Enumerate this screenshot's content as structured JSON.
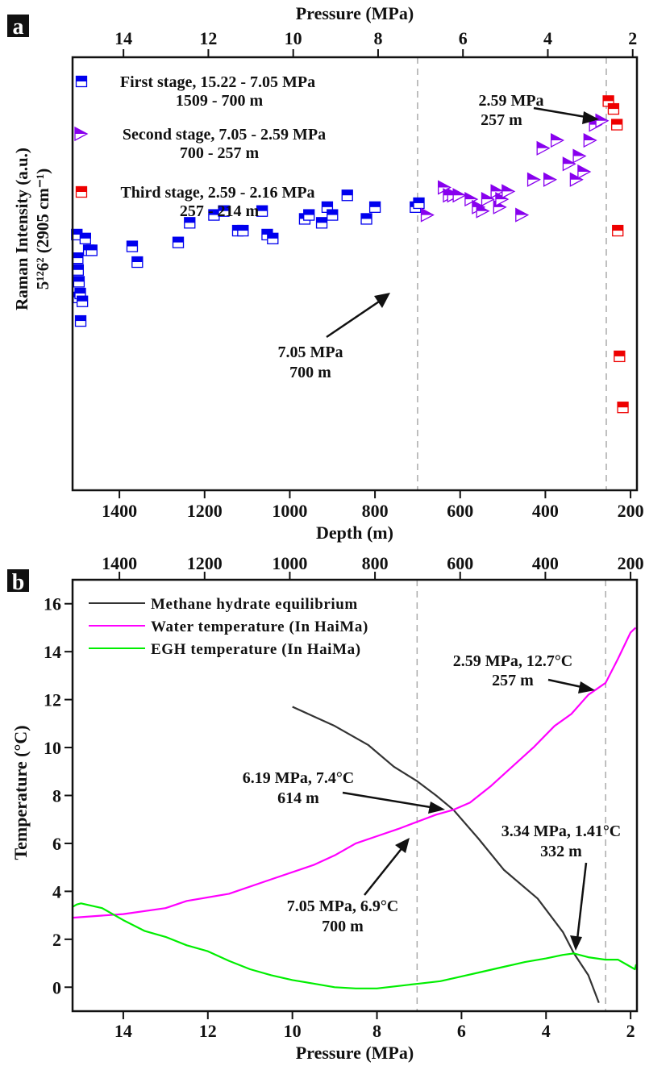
{
  "chart_data": [
    {
      "type": "scatter",
      "panel_label": "a",
      "top_axis": {
        "label": "Pressure (MPa)",
        "ticks": [
          14,
          12,
          10,
          8,
          6,
          4,
          2
        ],
        "range": [
          15.2,
          1.9
        ]
      },
      "xlabel": "Depth (m)",
      "xticks": [
        1400,
        1200,
        1000,
        800,
        600,
        400,
        200
      ],
      "xlim": [
        1510,
        185
      ],
      "ylabel_line1": "Raman Intensity (a.u.)",
      "ylabel_line2": "5¹²6² (2905 cm⁻¹)",
      "ylim": [
        0,
        100
      ],
      "grid": false,
      "legend_position": "top-left",
      "vlines_depth": [
        700,
        257
      ],
      "series": [
        {
          "name": "First stage, 15.22 - 7.05 MPa",
          "name2": "1509 - 700 m",
          "color": "#0000ee",
          "marker": "half-square",
          "points": [
            [
              1500,
              61
            ],
            [
              1498,
              55
            ],
            [
              1497,
              52
            ],
            [
              1495,
              49
            ],
            [
              1496,
              45
            ],
            [
              1492,
              46
            ],
            [
              1491,
              39
            ],
            [
              1487,
              44
            ],
            [
              1480,
              60
            ],
            [
              1472,
              57
            ],
            [
              1465,
              57
            ],
            [
              1370,
              58
            ],
            [
              1358,
              54
            ],
            [
              1262,
              59
            ],
            [
              1235,
              64
            ],
            [
              1178,
              66
            ],
            [
              1155,
              67
            ],
            [
              1122,
              62
            ],
            [
              1110,
              62
            ],
            [
              1065,
              67
            ],
            [
              1053,
              61
            ],
            [
              1040,
              60
            ],
            [
              965,
              65
            ],
            [
              955,
              66
            ],
            [
              925,
              64
            ],
            [
              912,
              68
            ],
            [
              900,
              66
            ],
            [
              865,
              71
            ],
            [
              820,
              65
            ],
            [
              800,
              68
            ],
            [
              705,
              68
            ],
            [
              697,
              69
            ]
          ]
        },
        {
          "name": "Second stage, 7.05 - 2.59 MPa",
          "name2": "700 - 257 m",
          "color": "#8800ee",
          "marker": "half-triangle",
          "points": [
            [
              680,
              66
            ],
            [
              640,
              73
            ],
            [
              628,
              71
            ],
            [
              618,
              71
            ],
            [
              605,
              71
            ],
            [
              577,
              70
            ],
            [
              560,
              68
            ],
            [
              550,
              67
            ],
            [
              538,
              70
            ],
            [
              516,
              72
            ],
            [
              510,
              68
            ],
            [
              505,
              70
            ],
            [
              490,
              72
            ],
            [
              458,
              66
            ],
            [
              430,
              75
            ],
            [
              408,
              83
            ],
            [
              392,
              75
            ],
            [
              375,
              85
            ],
            [
              347,
              79
            ],
            [
              330,
              75
            ],
            [
              323,
              81
            ],
            [
              312,
              77
            ],
            [
              298,
              85
            ],
            [
              285,
              89
            ],
            [
              270,
              90
            ]
          ]
        },
        {
          "name": "Third stage, 2.59 - 2.16 MPa",
          "name2": "257 - 214 m",
          "color": "#ee0000",
          "marker": "half-square",
          "points": [
            [
              252,
              95
            ],
            [
              240,
              93
            ],
            [
              232,
              89
            ],
            [
              230,
              62
            ],
            [
              226,
              30
            ],
            [
              218,
              17
            ]
          ]
        }
      ],
      "annotations": [
        {
          "line1": "2.59 MPa",
          "line2": "257 m",
          "target_depth": 257
        },
        {
          "line1": "7.05 MPa",
          "line2": "700 m",
          "target_depth": 700
        }
      ]
    },
    {
      "type": "line",
      "panel_label": "b",
      "top_axis": {
        "label": "",
        "ticks": [
          1400,
          1200,
          1000,
          800,
          600,
          400,
          200
        ],
        "range": [
          1510,
          185
        ]
      },
      "xlabel": "Pressure (MPa)",
      "xticks": [
        14,
        12,
        10,
        8,
        6,
        4,
        2
      ],
      "xlim": [
        15.2,
        1.85
      ],
      "ylabel": "Temperature (°C)",
      "yticks": [
        0,
        2,
        4,
        6,
        8,
        10,
        12,
        14,
        16
      ],
      "ylim": [
        -1,
        17
      ],
      "grid": false,
      "legend_position": "top-left",
      "vlines_pressure": [
        7.05,
        2.59
      ],
      "series": [
        {
          "name": "Methane hydrate equilibrium",
          "color": "#333333",
          "points": [
            [
              10.0,
              11.7
            ],
            [
              9.0,
              10.9
            ],
            [
              8.2,
              10.1
            ],
            [
              7.6,
              9.2
            ],
            [
              7.05,
              8.6
            ],
            [
              6.6,
              8.0
            ],
            [
              6.19,
              7.4
            ],
            [
              5.6,
              6.2
            ],
            [
              5.0,
              4.9
            ],
            [
              4.2,
              3.7
            ],
            [
              3.6,
              2.3
            ],
            [
              3.34,
              1.41
            ],
            [
              3.0,
              0.5
            ],
            [
              2.75,
              -0.65
            ]
          ]
        },
        {
          "name": "Water temperature (In HaiMa)",
          "color": "#ff00ff",
          "points": [
            [
              15.2,
              2.9
            ],
            [
              14.0,
              3.05
            ],
            [
              13.0,
              3.3
            ],
            [
              12.5,
              3.6
            ],
            [
              11.5,
              3.9
            ],
            [
              10.5,
              4.5
            ],
            [
              9.5,
              5.1
            ],
            [
              9.0,
              5.5
            ],
            [
              8.5,
              6.0
            ],
            [
              8.0,
              6.3
            ],
            [
              7.5,
              6.6
            ],
            [
              7.05,
              6.9
            ],
            [
              6.6,
              7.2
            ],
            [
              6.19,
              7.4
            ],
            [
              5.8,
              7.7
            ],
            [
              5.3,
              8.4
            ],
            [
              4.8,
              9.2
            ],
            [
              4.3,
              10.0
            ],
            [
              3.8,
              10.9
            ],
            [
              3.4,
              11.4
            ],
            [
              3.0,
              12.2
            ],
            [
              2.59,
              12.7
            ],
            [
              2.3,
              13.7
            ],
            [
              2.0,
              14.8
            ],
            [
              1.88,
              15.0
            ]
          ]
        },
        {
          "name": "EGH temperature (In HaiMa)",
          "color": "#00ee00",
          "points": [
            [
              15.2,
              3.35
            ],
            [
              15.1,
              3.45
            ],
            [
              15.0,
              3.5
            ],
            [
              14.5,
              3.3
            ],
            [
              14.0,
              2.8
            ],
            [
              13.5,
              2.35
            ],
            [
              13.0,
              2.1
            ],
            [
              12.5,
              1.75
            ],
            [
              12.0,
              1.5
            ],
            [
              11.5,
              1.1
            ],
            [
              11.0,
              0.75
            ],
            [
              10.5,
              0.5
            ],
            [
              10.0,
              0.3
            ],
            [
              9.5,
              0.15
            ],
            [
              9.0,
              0.0
            ],
            [
              8.5,
              -0.05
            ],
            [
              8.0,
              -0.05
            ],
            [
              7.5,
              0.05
            ],
            [
              7.0,
              0.15
            ],
            [
              6.5,
              0.25
            ],
            [
              6.0,
              0.45
            ],
            [
              5.5,
              0.65
            ],
            [
              5.0,
              0.85
            ],
            [
              4.5,
              1.05
            ],
            [
              4.0,
              1.2
            ],
            [
              3.6,
              1.35
            ],
            [
              3.34,
              1.41
            ],
            [
              3.0,
              1.25
            ],
            [
              2.6,
              1.15
            ],
            [
              2.3,
              1.15
            ],
            [
              2.1,
              0.95
            ],
            [
              1.9,
              0.75
            ],
            [
              1.87,
              0.95
            ]
          ]
        }
      ],
      "annotations": [
        {
          "line1": "2.59 MPa, 12.7°C",
          "line2": "257 m",
          "target": [
            2.62,
            12.6
          ]
        },
        {
          "line1": "6.19 MPa, 7.4°C",
          "line2": "614 m",
          "target": [
            6.25,
            7.45
          ]
        },
        {
          "line1": "3.34 MPa, 1.41°C",
          "line2": "332 m",
          "target": [
            3.38,
            1.5
          ]
        },
        {
          "line1": "7.05 MPa, 6.9°C",
          "line2": "700 m",
          "target": [
            7.1,
            6.7
          ]
        }
      ]
    }
  ]
}
